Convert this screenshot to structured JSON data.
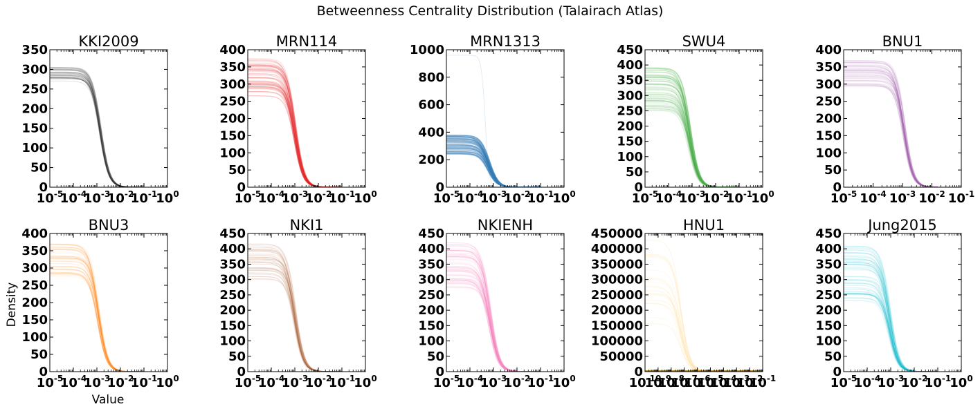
{
  "figure": {
    "title": "Betweenness Centrality Distribution (Talairach Atlas)",
    "ylabel": "Density",
    "xlabel": "Value"
  },
  "chart_data": [
    {
      "type": "line",
      "title": "KKI2009",
      "color": "#222222",
      "xscale": "log",
      "xticks": [
        "-5",
        "-4",
        "-3",
        "-2",
        "-1",
        "0"
      ],
      "xlim": [
        -5,
        0
      ],
      "yticks": [
        0,
        50,
        100,
        150,
        200,
        250,
        300,
        350
      ],
      "ylim": [
        0,
        350
      ],
      "curves": {
        "count": 30,
        "plateau_min": 270,
        "plateau_max": 305,
        "midpoint_log10": -2.85,
        "density": 0.25
      },
      "ylabel": "",
      "xlabel": ""
    },
    {
      "type": "line",
      "title": "MRN114",
      "color": "#e41a1c",
      "xscale": "log",
      "xticks": [
        "-5",
        "-4",
        "-3",
        "-2",
        "-1",
        "0"
      ],
      "xlim": [
        -5,
        0
      ],
      "yticks": [
        0,
        50,
        100,
        150,
        200,
        250,
        300,
        350,
        400
      ],
      "ylim": [
        0,
        400
      ],
      "curves": {
        "count": 60,
        "plateau_min": 265,
        "plateau_max": 375,
        "midpoint_log10": -3.0,
        "density": 0.18
      },
      "ylabel": "",
      "xlabel": ""
    },
    {
      "type": "line",
      "title": "MRN1313",
      "color": "#377eb8",
      "xscale": "log",
      "xticks": [
        "-5",
        "-4",
        "-3",
        "-2",
        "-1",
        "0"
      ],
      "xlim": [
        -5,
        0
      ],
      "yticks": [
        0,
        200,
        400,
        600,
        800,
        1000
      ],
      "ylim": [
        0,
        1000
      ],
      "curves": {
        "count": 120,
        "plateau_min": 240,
        "plateau_max": 380,
        "midpoint_log10": -3.2,
        "density": 0.25,
        "outlier_peak": 960
      },
      "ylabel": "",
      "xlabel": ""
    },
    {
      "type": "line",
      "title": "SWU4",
      "color": "#4daf4a",
      "xscale": "log",
      "xticks": [
        "-5",
        "-4",
        "-3",
        "-2",
        "-1",
        "0"
      ],
      "xlim": [
        -5,
        0
      ],
      "yticks": [
        0,
        50,
        100,
        150,
        200,
        250,
        300,
        350,
        400,
        450
      ],
      "ylim": [
        0,
        450
      ],
      "curves": {
        "count": 80,
        "plateau_min": 250,
        "plateau_max": 400,
        "midpoint_log10": -3.1,
        "density": 0.2
      },
      "ylabel": "",
      "xlabel": ""
    },
    {
      "type": "line",
      "title": "BNU1",
      "color": "#984ea3",
      "xscale": "log",
      "xticks": [
        "-5",
        "-4",
        "-3",
        "-2",
        "-1"
      ],
      "xlim": [
        -5,
        -1
      ],
      "yticks": [
        0,
        50,
        100,
        150,
        200,
        250,
        300,
        350,
        400
      ],
      "ylim": [
        0,
        400
      ],
      "curves": {
        "count": 40,
        "plateau_min": 290,
        "plateau_max": 370,
        "midpoint_log10": -2.95,
        "density": 0.18
      },
      "ylabel": "",
      "xlabel": ""
    },
    {
      "type": "line",
      "title": "BNU3",
      "color": "#ff7f00",
      "xscale": "log",
      "xticks": [
        "-5",
        "-4",
        "-3",
        "-2",
        "-1",
        "0"
      ],
      "xlim": [
        -5,
        0
      ],
      "yticks": [
        0,
        50,
        100,
        150,
        200,
        250,
        300,
        350,
        400
      ],
      "ylim": [
        0,
        400
      ],
      "curves": {
        "count": 40,
        "plateau_min": 275,
        "plateau_max": 375,
        "midpoint_log10": -2.95,
        "density": 0.16
      },
      "ylabel": "Density",
      "xlabel": "Value"
    },
    {
      "type": "line",
      "title": "NKI1",
      "color": "#a65628",
      "xscale": "log",
      "xticks": [
        "-5",
        "-4",
        "-3",
        "-2",
        "-1",
        "0"
      ],
      "xlim": [
        -5,
        0
      ],
      "yticks": [
        0,
        50,
        100,
        150,
        200,
        250,
        300,
        350,
        400,
        450
      ],
      "ylim": [
        0,
        450
      ],
      "curves": {
        "count": 40,
        "plateau_min": 300,
        "plateau_max": 420,
        "midpoint_log10": -3.0,
        "density": 0.16
      },
      "ylabel": "",
      "xlabel": ""
    },
    {
      "type": "line",
      "title": "NKIENH",
      "color": "#f781bf",
      "xscale": "log",
      "xticks": [
        "-5",
        "-4",
        "-3",
        "-2",
        "-1",
        "0"
      ],
      "xlim": [
        -5,
        0
      ],
      "yticks": [
        0,
        50,
        100,
        150,
        200,
        250,
        300,
        350,
        400,
        450
      ],
      "ylim": [
        0,
        450
      ],
      "curves": {
        "count": 60,
        "plateau_min": 270,
        "plateau_max": 420,
        "midpoint_log10": -3.15,
        "density": 0.2
      },
      "ylabel": "",
      "xlabel": ""
    },
    {
      "type": "line",
      "title": "HNU1",
      "color": "#ffcc66",
      "xscale": "log",
      "xticks": [
        "-10",
        "-9",
        "-8",
        "-7",
        "-6",
        "-5",
        "-4",
        "-3",
        "-2",
        "-1"
      ],
      "xlim": [
        -10,
        -1
      ],
      "yticks": [
        0,
        50000,
        100000,
        150000,
        200000,
        250000,
        300000,
        350000,
        400000,
        450000
      ],
      "ylim": [
        0,
        450000
      ],
      "curves": {
        "count": 20,
        "plateau_min": 150000,
        "plateau_max": 430000,
        "midpoint_log10": -7.3,
        "density": 0.15,
        "baseline": 2000
      },
      "ylabel": "",
      "xlabel": ""
    },
    {
      "type": "line",
      "title": "Jung2015",
      "color": "#17becf",
      "xscale": "log",
      "xticks": [
        "-5",
        "-4",
        "-3",
        "-2",
        "-1",
        "0"
      ],
      "xlim": [
        -5,
        0
      ],
      "yticks": [
        0,
        50,
        100,
        150,
        200,
        250,
        300,
        350,
        400,
        450
      ],
      "ylim": [
        0,
        450
      ],
      "curves": {
        "count": 60,
        "plateau_min": 230,
        "plateau_max": 410,
        "midpoint_log10": -3.05,
        "density": 0.18
      },
      "ylabel": "",
      "xlabel": ""
    }
  ]
}
